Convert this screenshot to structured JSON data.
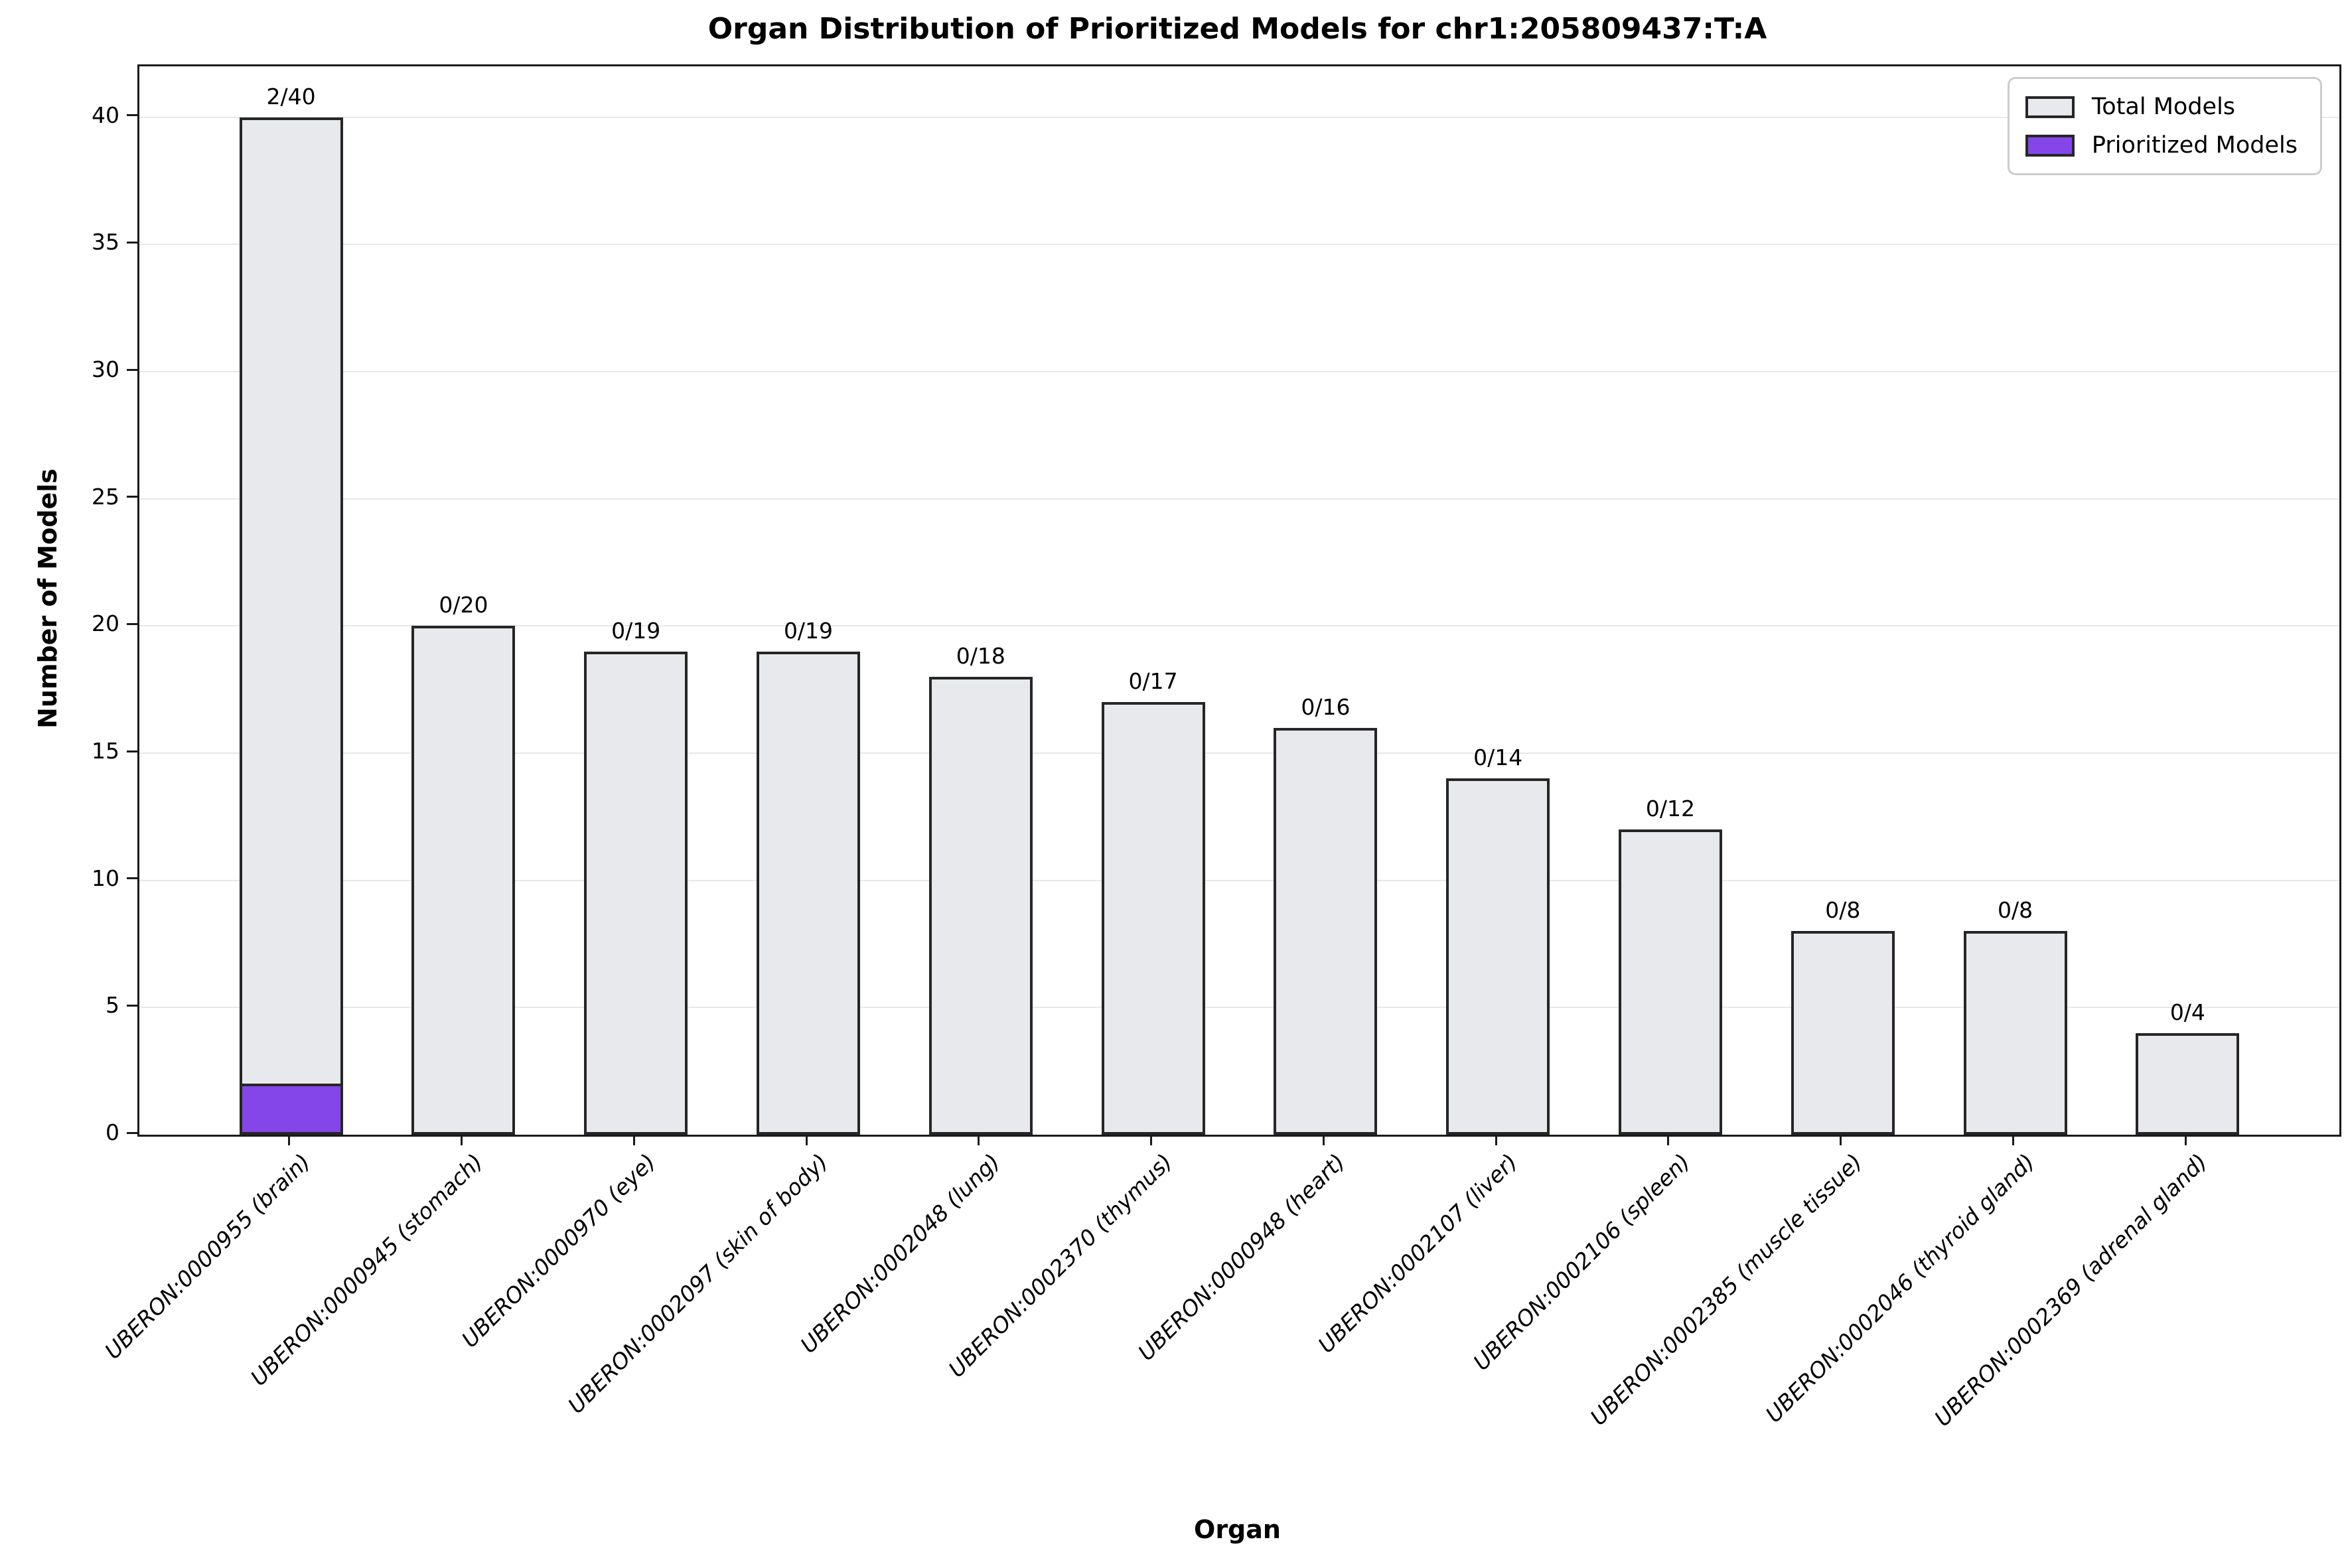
{
  "chart_data": {
    "type": "bar",
    "title": "Organ Distribution of Prioritized Models for chr1:205809437:T:A",
    "xlabel": "Organ",
    "ylabel": "Number of Models",
    "categories": [
      "UBERON:0000955 (brain)",
      "UBERON:0000945 (stomach)",
      "UBERON:0000970 (eye)",
      "UBERON:0002097 (skin of body)",
      "UBERON:0002048 (lung)",
      "UBERON:0002370 (thymus)",
      "UBERON:0000948 (heart)",
      "UBERON:0002107 (liver)",
      "UBERON:0002106 (spleen)",
      "UBERON:0002385 (muscle tissue)",
      "UBERON:0002046 (thyroid gland)",
      "UBERON:0002369 (adrenal gland)"
    ],
    "series": [
      {
        "name": "Total Models",
        "values": [
          40,
          20,
          19,
          19,
          18,
          17,
          16,
          14,
          12,
          8,
          8,
          4
        ],
        "color": "#E8E9ED"
      },
      {
        "name": "Prioritized Models",
        "values": [
          2,
          0,
          0,
          0,
          0,
          0,
          0,
          0,
          0,
          0,
          0,
          0
        ],
        "color": "#8446E8"
      }
    ],
    "bar_labels": [
      "2/40",
      "0/20",
      "0/19",
      "0/19",
      "0/18",
      "0/17",
      "0/16",
      "0/14",
      "0/12",
      "0/8",
      "0/8",
      "0/4"
    ],
    "ylim": [
      0,
      42
    ],
    "yticks": [
      0,
      5,
      10,
      15,
      20,
      25,
      30,
      35,
      40
    ],
    "grid": "horizontal",
    "gridline_color": "#e8e8e8",
    "bar_edge_color": "#262626",
    "legend_position": "upper right"
  }
}
